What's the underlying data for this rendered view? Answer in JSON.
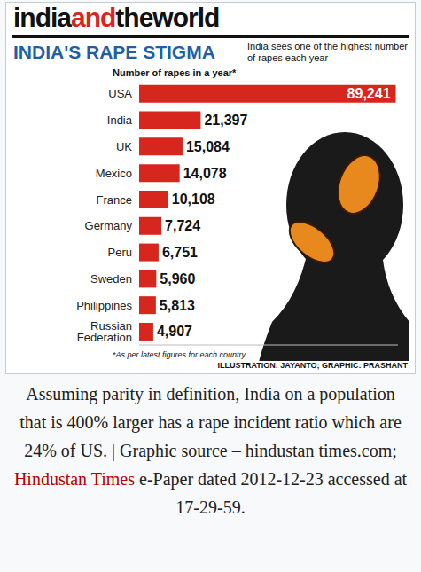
{
  "header": [
    "india",
    "and",
    "theworld"
  ],
  "chart_data": {
    "type": "bar",
    "orientation": "horizontal",
    "title": "INDIA'S RAPE STIGMA",
    "subtitle": "India sees one of the highest number of rapes each year",
    "xlabel": "Number of rapes in a year*",
    "categories": [
      "USA",
      "India",
      "UK",
      "Mexico",
      "France",
      "Germany",
      "Peru",
      "Sweden",
      "Philippines",
      "Russian Federation"
    ],
    "values": [
      89241,
      21397,
      15084,
      14078,
      10108,
      7724,
      6751,
      5960,
      5813,
      4907
    ],
    "value_labels": [
      "89,241",
      "21,397",
      "15,084",
      "14,078",
      "10,108",
      "7,724",
      "6,751",
      "5,960",
      "5,813",
      "4,907"
    ],
    "color": "#d7261e",
    "xlim": [
      0,
      90000
    ],
    "data_labels": true,
    "tick_labels": "y",
    "grid": false,
    "annotations": [
      "*As per latest figures for each country",
      "ILLUSTRATION: JAYANTO; GRAPHIC: PRASHANT"
    ]
  },
  "caption": [
    "Assuming parity in definition, India on a population that is 400% larger has a rape incident ratio which are 24% of US. | Graphic source – hindustan times.com; ",
    "Hindustan Times",
    " e-Paper dated 2012-12-23 accessed at 17-29-59."
  ]
}
